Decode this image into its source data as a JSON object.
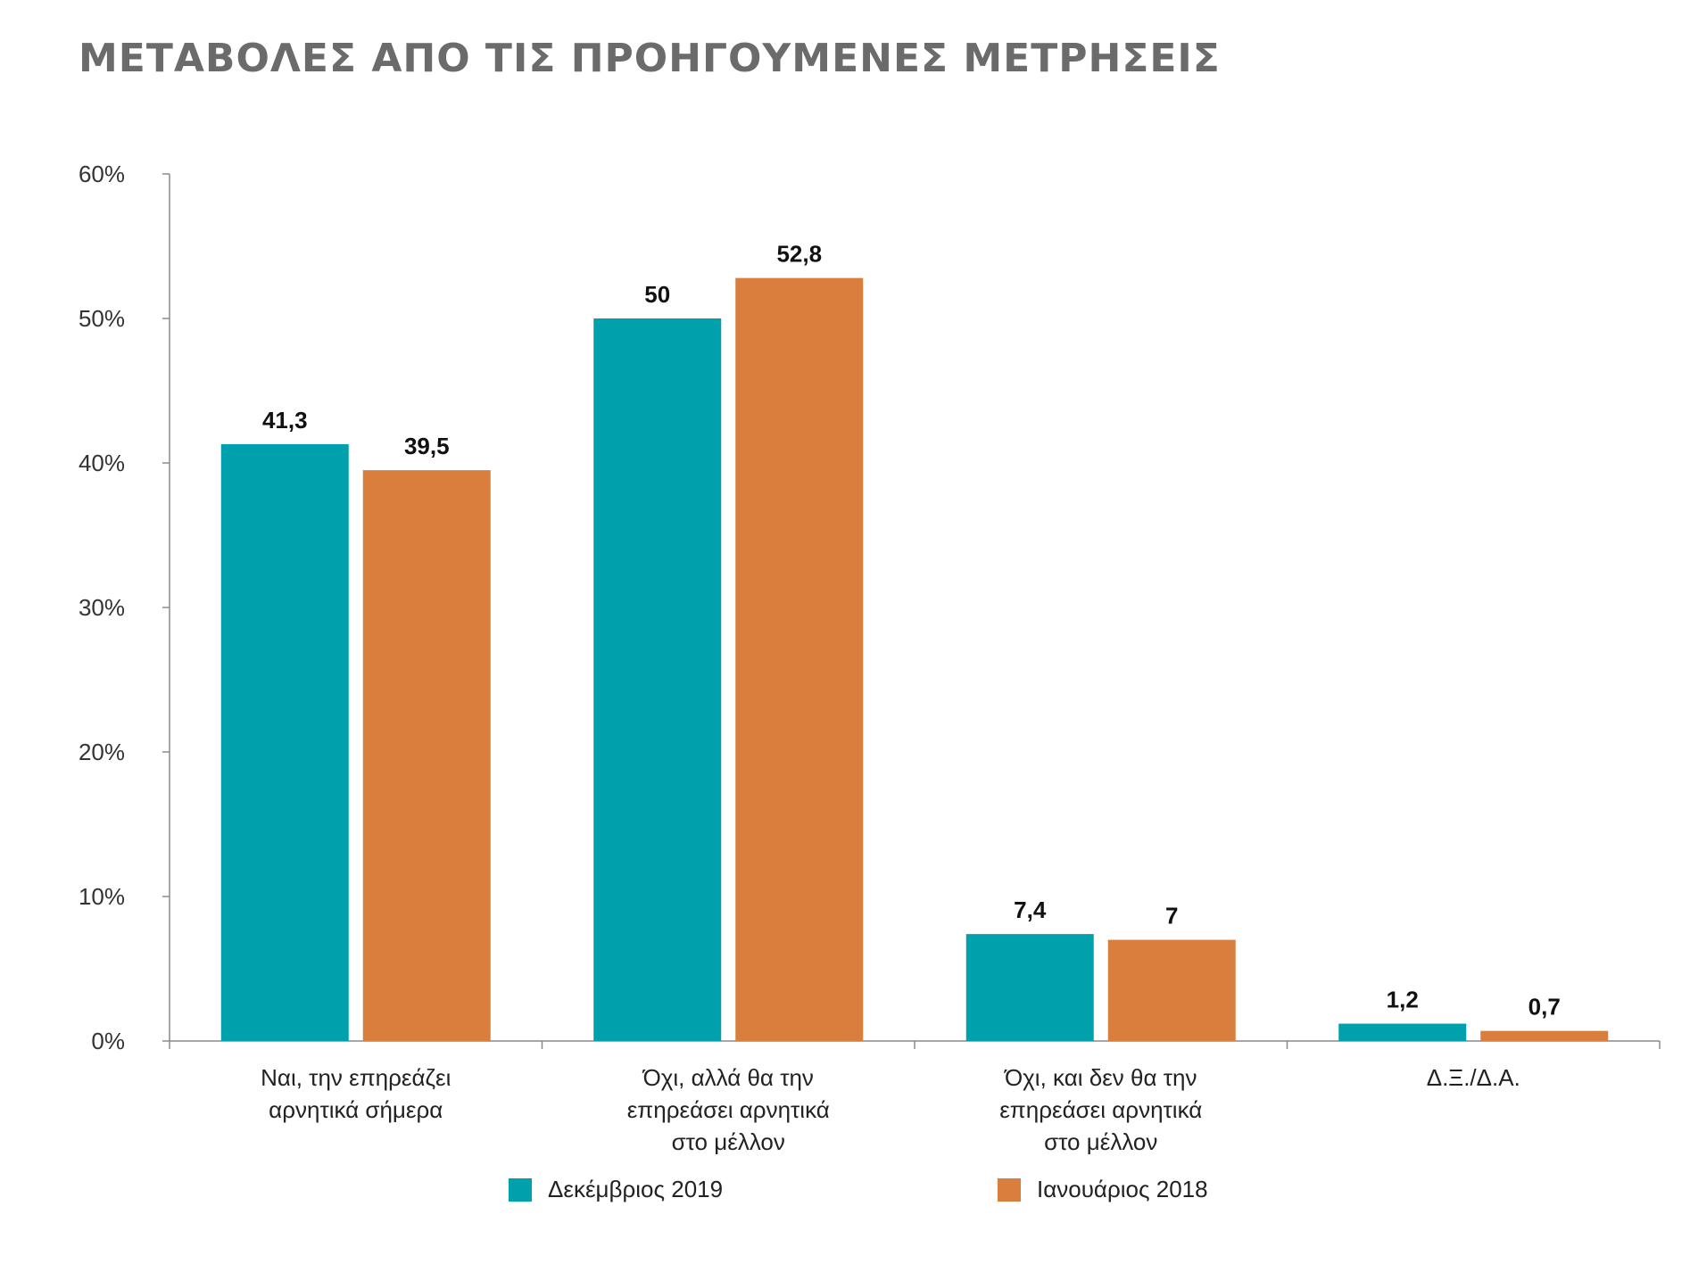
{
  "title": "ΜΕΤΑΒΟΛΕΣ ΑΠΟ ΤΙΣ ΠΡΟΗΓΟΥΜΕΝΕΣ ΜΕΤΡΗΣΕΙΣ",
  "legend": [
    {
      "label": "Δεκέμβριος 2019",
      "color": "#00A1AC"
    },
    {
      "label": "Ιανουάριος 2018",
      "color": "#DA7E3E"
    }
  ],
  "chart_data": {
    "type": "bar",
    "title": "ΜΕΤΑΒΟΛΕΣ ΑΠΟ ΤΙΣ ΠΡΟΗΓΟΥΜΕΝΕΣ ΜΕΤΡΗΣΕΙΣ",
    "categories": [
      [
        "Ναι, την επηρεάζει",
        "αρνητικά σήμερα"
      ],
      [
        "Όχι, αλλά θα την",
        "επηρεάσει αρνητικά",
        "στο μέλλον"
      ],
      [
        "Όχι, και δεν θα την",
        "επηρεάσει αρνητικά",
        "στο μέλλον"
      ],
      [
        "Δ.Ξ./Δ.Α."
      ]
    ],
    "series": [
      {
        "name": "Δεκέμβριος 2019",
        "color": "#00A1AC",
        "values": [
          41.3,
          50,
          7.4,
          1.2
        ],
        "labels": [
          "41,3",
          "50",
          "7,4",
          "1,2"
        ]
      },
      {
        "name": "Ιανουάριος 2018",
        "color": "#DA7E3E",
        "values": [
          39.5,
          52.8,
          7,
          0.7
        ],
        "labels": [
          "39,5",
          "52,8",
          "7",
          "0,7"
        ]
      }
    ],
    "ylim": [
      0,
      60
    ],
    "yticks": [
      0,
      10,
      20,
      30,
      40,
      50,
      60
    ],
    "ytick_labels": [
      "0%",
      "10%",
      "20%",
      "30%",
      "40%",
      "50%",
      "60%"
    ],
    "xlabel": "",
    "ylabel": "",
    "grid": false,
    "legend_position": "bottom"
  }
}
